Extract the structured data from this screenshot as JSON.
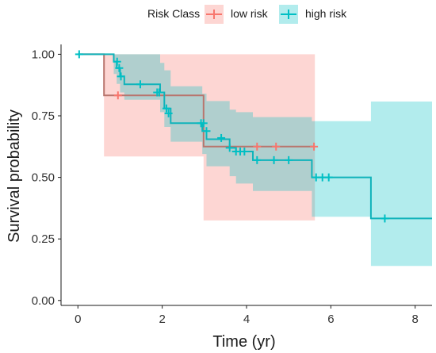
{
  "chart_data": {
    "type": "line",
    "subtype": "kaplan-meier survival curve with confidence bands",
    "xlabel": "Time (yr)",
    "ylabel": "Survival probability",
    "xlim": [
      -0.4,
      8.4
    ],
    "ylim": [
      -0.02,
      1.04
    ],
    "xticks": [
      0,
      2,
      4,
      6,
      8
    ],
    "yticks": [
      0.0,
      0.25,
      0.5,
      0.75,
      1.0
    ],
    "ytick_labels": [
      "0.00",
      "0.25",
      "0.50",
      "0.75",
      "1.00"
    ],
    "grid": false,
    "legend": {
      "title": "Risk Class",
      "position": "top",
      "entries": [
        "low risk",
        "high risk"
      ]
    },
    "series": [
      {
        "name": "low risk",
        "color": "#F8766D",
        "line_color": "#B8756D",
        "fill": "#F8766D",
        "steps": [
          [
            0,
            1.0
          ],
          [
            0.62,
            0.833
          ],
          [
            2.98,
            0.625
          ],
          [
            5.62,
            0.625
          ]
        ],
        "ci_upper": [
          [
            0,
            1.0
          ],
          [
            0.62,
            1.0
          ],
          [
            2.98,
            1.0
          ],
          [
            5.62,
            1.0
          ]
        ],
        "ci_lower": [
          [
            0,
            1.0
          ],
          [
            0.62,
            0.585
          ],
          [
            2.98,
            0.325
          ],
          [
            5.62,
            0.325
          ]
        ],
        "censored": [
          [
            0.95,
            0.833
          ],
          [
            4.25,
            0.625
          ],
          [
            4.7,
            0.625
          ],
          [
            5.6,
            0.625
          ]
        ]
      },
      {
        "name": "high risk",
        "color": "#00BFC4",
        "line_color": "#10B3BA",
        "fill": "#00BFC4",
        "steps": [
          [
            0,
            1.0
          ],
          [
            0.85,
            0.97
          ],
          [
            0.92,
            0.944
          ],
          [
            1.0,
            0.91
          ],
          [
            1.1,
            0.878
          ],
          [
            1.95,
            0.845
          ],
          [
            2.05,
            0.78
          ],
          [
            2.2,
            0.72
          ],
          [
            2.95,
            0.688
          ],
          [
            3.05,
            0.655
          ],
          [
            3.6,
            0.62
          ],
          [
            3.75,
            0.605
          ],
          [
            4.15,
            0.57
          ],
          [
            5.55,
            0.5
          ],
          [
            6.95,
            0.333
          ],
          [
            8.4,
            0.333
          ]
        ],
        "ci_upper": [
          [
            0,
            1.0
          ],
          [
            0.85,
            1.0
          ],
          [
            1.1,
            1.0
          ],
          [
            1.95,
            0.965
          ],
          [
            2.05,
            0.935
          ],
          [
            2.2,
            0.87
          ],
          [
            2.95,
            0.84
          ],
          [
            3.05,
            0.81
          ],
          [
            3.6,
            0.775
          ],
          [
            3.75,
            0.765
          ],
          [
            4.15,
            0.745
          ],
          [
            5.55,
            0.728
          ],
          [
            6.95,
            0.808
          ],
          [
            8.4,
            0.808
          ]
        ],
        "ci_lower": [
          [
            0,
            1.0
          ],
          [
            0.85,
            0.92
          ],
          [
            0.92,
            0.88
          ],
          [
            1.0,
            0.845
          ],
          [
            1.1,
            0.815
          ],
          [
            1.95,
            0.765
          ],
          [
            2.05,
            0.705
          ],
          [
            2.2,
            0.645
          ],
          [
            2.95,
            0.595
          ],
          [
            3.05,
            0.545
          ],
          [
            3.6,
            0.505
          ],
          [
            3.75,
            0.475
          ],
          [
            4.15,
            0.445
          ],
          [
            5.55,
            0.34
          ],
          [
            6.95,
            0.14
          ],
          [
            8.4,
            0.14
          ]
        ],
        "censored": [
          [
            0.03,
            1.0
          ],
          [
            0.93,
            0.97
          ],
          [
            0.98,
            0.944
          ],
          [
            1.02,
            0.91
          ],
          [
            1.48,
            0.878
          ],
          [
            1.88,
            0.845
          ],
          [
            1.93,
            0.845
          ],
          [
            2.1,
            0.78
          ],
          [
            2.15,
            0.76
          ],
          [
            2.92,
            0.72
          ],
          [
            2.98,
            0.72
          ],
          [
            3.05,
            0.688
          ],
          [
            3.4,
            0.66
          ],
          [
            3.6,
            0.62
          ],
          [
            3.75,
            0.605
          ],
          [
            3.85,
            0.605
          ],
          [
            3.95,
            0.605
          ],
          [
            4.25,
            0.57
          ],
          [
            4.65,
            0.57
          ],
          [
            5.0,
            0.57
          ],
          [
            5.65,
            0.5
          ],
          [
            5.8,
            0.5
          ],
          [
            5.95,
            0.5
          ],
          [
            7.28,
            0.333
          ]
        ]
      }
    ]
  }
}
